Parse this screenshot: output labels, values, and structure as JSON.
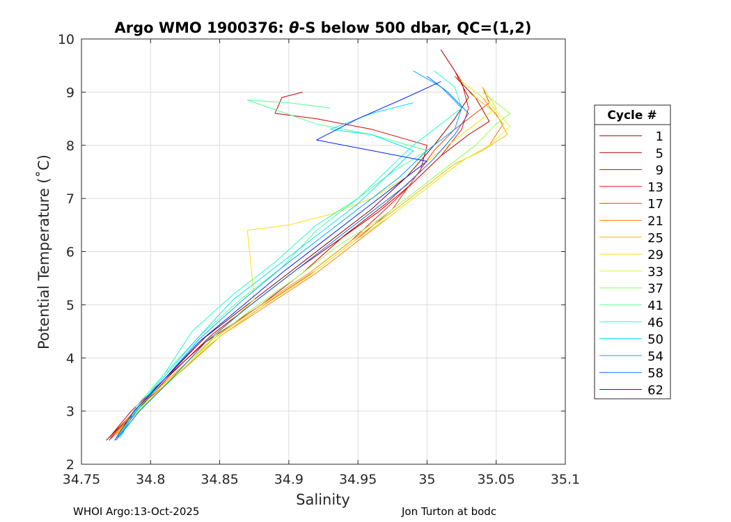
{
  "footer": {
    "left": "WHOI Argo:13-Oct-2025",
    "right": "Jon Turton at bodc"
  },
  "chart_data": {
    "type": "line",
    "title_prefix": "Argo WMO 1900376: ",
    "title_symbol": "θ",
    "title_suffix": "-S below 500 dbar,  QC=(1,2)",
    "xlabel": "Salinity",
    "ylabel": "Potential Temperature (˚C)",
    "xlim": [
      34.75,
      35.1
    ],
    "ylim": [
      2,
      10
    ],
    "xticks": [
      "34.75",
      "34.8",
      "34.85",
      "34.9",
      "34.95",
      "35",
      "35.05",
      "35.1"
    ],
    "yticks": [
      "2",
      "3",
      "4",
      "5",
      "6",
      "7",
      "8",
      "9",
      "10"
    ],
    "grid": true,
    "legend": {
      "title": "Cycle #",
      "placement": "outside-right",
      "entries": [
        {
          "label": "1",
          "color": "#800000"
        },
        {
          "label": "5",
          "color": "#a80000"
        },
        {
          "label": "9",
          "color": "#d00000"
        },
        {
          "label": "13",
          "color": "#f01010"
        },
        {
          "label": "17",
          "color": "#ff3a00"
        },
        {
          "label": "21",
          "color": "#ff8000"
        },
        {
          "label": "25",
          "color": "#ffb000"
        },
        {
          "label": "29",
          "color": "#ffe000"
        },
        {
          "label": "33",
          "color": "#d8ff28"
        },
        {
          "label": "37",
          "color": "#90ff50"
        },
        {
          "label": "41",
          "color": "#50ff90"
        },
        {
          "label": "46",
          "color": "#20ffd0"
        },
        {
          "label": "50",
          "color": "#00e0ff"
        },
        {
          "label": "54",
          "color": "#00a8ff"
        },
        {
          "label": "58",
          "color": "#0070ff"
        },
        {
          "label": "62",
          "color": "#0020ff"
        }
      ]
    },
    "series": [
      {
        "cycle": "1",
        "color": "#800000",
        "x": [
          34.768,
          34.785,
          34.81,
          34.84,
          34.87,
          34.9,
          34.93,
          34.96,
          34.985,
          35.005,
          35.02,
          35.03,
          35.02,
          35.01
        ],
        "y": [
          2.45,
          2.9,
          3.6,
          4.4,
          5.0,
          5.6,
          6.2,
          6.8,
          7.4,
          8.0,
          8.5,
          8.9,
          9.4,
          9.8
        ]
      },
      {
        "cycle": "5",
        "color": "#a80000",
        "x": [
          34.77,
          34.79,
          34.815,
          34.845,
          34.875,
          34.905,
          34.935,
          34.965,
          34.99,
          35.01,
          35.03,
          35.045,
          35.035,
          35.02
        ],
        "y": [
          2.45,
          3.0,
          3.7,
          4.45,
          5.05,
          5.65,
          6.2,
          6.75,
          7.3,
          7.8,
          8.2,
          8.45,
          8.9,
          9.3
        ]
      },
      {
        "cycle": "9",
        "color": "#d00000",
        "x": [
          34.77,
          34.786,
          34.81,
          34.84,
          34.88,
          34.91,
          34.94,
          34.97,
          34.995,
          35.0,
          34.96,
          34.92,
          34.89,
          34.895,
          34.91
        ],
        "y": [
          2.5,
          3.0,
          3.6,
          4.3,
          5.0,
          5.6,
          6.3,
          6.9,
          7.5,
          8.0,
          8.3,
          8.5,
          8.6,
          8.9,
          9.0
        ]
      },
      {
        "cycle": "13",
        "color": "#f01010",
        "x": [
          34.772,
          34.79,
          34.815,
          34.845,
          34.88,
          34.915,
          34.945,
          34.97,
          34.99,
          35.01,
          35.025,
          35.03,
          35.025,
          35.015
        ],
        "y": [
          2.5,
          3.05,
          3.65,
          4.35,
          5.0,
          5.6,
          6.2,
          6.8,
          7.3,
          7.8,
          8.3,
          8.7,
          9.2,
          9.6
        ]
      },
      {
        "cycle": "17",
        "color": "#ff3a00",
        "x": [
          34.771,
          34.79,
          34.82,
          34.85,
          34.885,
          34.92,
          34.95,
          34.975,
          34.99,
          35.005,
          35.02,
          35.035,
          35.045,
          35.04
        ],
        "y": [
          2.5,
          3.05,
          3.7,
          4.4,
          5.05,
          5.65,
          6.25,
          6.8,
          7.35,
          7.9,
          8.3,
          8.6,
          8.8,
          9.1
        ]
      },
      {
        "cycle": "21",
        "color": "#ff8000",
        "x": [
          34.775,
          34.795,
          34.82,
          34.85,
          34.885,
          34.92,
          34.95,
          34.98,
          35.005,
          35.025,
          35.045,
          35.055,
          35.04,
          35.02
        ],
        "y": [
          2.55,
          3.1,
          3.7,
          4.4,
          5.0,
          5.6,
          6.2,
          6.8,
          7.3,
          7.7,
          8.0,
          8.4,
          8.9,
          9.3
        ]
      },
      {
        "cycle": "25",
        "color": "#ffb000",
        "x": [
          34.774,
          34.79,
          34.815,
          34.845,
          34.88,
          34.915,
          34.945,
          34.975,
          35.0,
          35.02,
          35.04,
          35.058,
          35.05,
          35.03
        ],
        "y": [
          2.55,
          3.05,
          3.65,
          4.35,
          5.0,
          5.6,
          6.2,
          6.75,
          7.25,
          7.65,
          7.9,
          8.2,
          8.6,
          9.0
        ]
      },
      {
        "cycle": "29",
        "color": "#ffe000",
        "x": [
          34.776,
          34.795,
          34.82,
          34.85,
          34.875,
          34.87,
          34.9,
          34.93,
          34.96,
          34.985,
          35.01,
          35.03,
          35.05,
          35.04
        ],
        "y": [
          2.6,
          3.1,
          3.75,
          4.5,
          5.1,
          6.4,
          6.5,
          6.7,
          7.0,
          7.4,
          7.9,
          8.3,
          8.7,
          9.1
        ]
      },
      {
        "cycle": "33",
        "color": "#d8ff28",
        "x": [
          34.776,
          34.79,
          34.815,
          34.845,
          34.88,
          34.915,
          34.945,
          34.975,
          35.0,
          35.025,
          35.045,
          35.06,
          35.045,
          35.025
        ],
        "y": [
          2.55,
          3.0,
          3.6,
          4.3,
          4.95,
          5.55,
          6.15,
          6.7,
          7.2,
          7.7,
          8.0,
          8.35,
          8.8,
          9.2
        ]
      },
      {
        "cycle": "37",
        "color": "#90ff50",
        "x": [
          34.778,
          34.795,
          34.82,
          34.845,
          34.875,
          34.905,
          34.935,
          34.965,
          34.99,
          35.015,
          35.035,
          35.05,
          35.06,
          35.04
        ],
        "y": [
          2.55,
          3.1,
          3.7,
          4.35,
          4.95,
          5.5,
          6.1,
          6.6,
          7.1,
          7.6,
          8.0,
          8.4,
          8.6,
          9.0
        ]
      },
      {
        "cycle": "41",
        "color": "#50ff90",
        "x": [
          34.778,
          34.79,
          34.81,
          34.835,
          34.865,
          34.895,
          34.92,
          34.95,
          34.975,
          35.0,
          34.96,
          34.92,
          34.87,
          34.9,
          34.93
        ],
        "y": [
          2.55,
          3.1,
          3.7,
          4.4,
          5.1,
          5.7,
          6.4,
          7.0,
          7.5,
          7.9,
          8.2,
          8.4,
          8.85,
          8.8,
          8.7
        ]
      },
      {
        "cycle": "46",
        "color": "#20ffd0",
        "x": [
          34.778,
          34.792,
          34.81,
          34.83,
          34.86,
          34.89,
          34.92,
          34.95,
          34.97,
          34.99,
          35.01,
          35.025,
          35.02,
          35.005
        ],
        "y": [
          2.55,
          3.1,
          3.7,
          4.5,
          5.2,
          5.8,
          6.5,
          7.0,
          7.5,
          8.0,
          8.4,
          8.7,
          9.1,
          9.4
        ]
      },
      {
        "cycle": "50",
        "color": "#00e0ff",
        "x": [
          34.778,
          34.79,
          34.81,
          34.835,
          34.86,
          34.89,
          34.92,
          34.95,
          34.97,
          34.99,
          34.96,
          34.93,
          34.96,
          34.99
        ],
        "y": [
          2.5,
          3.05,
          3.65,
          4.4,
          5.1,
          5.7,
          6.3,
          6.9,
          7.4,
          7.9,
          8.2,
          8.3,
          8.6,
          8.8
        ]
      },
      {
        "cycle": "54",
        "color": "#00a8ff",
        "x": [
          34.776,
          34.79,
          34.81,
          34.835,
          34.865,
          34.895,
          34.925,
          34.955,
          34.98,
          35.0,
          35.02,
          35.025,
          35.01,
          34.99
        ],
        "y": [
          2.5,
          3.0,
          3.6,
          4.35,
          5.05,
          5.7,
          6.3,
          6.9,
          7.4,
          7.9,
          8.3,
          8.7,
          9.1,
          9.4
        ]
      },
      {
        "cycle": "58",
        "color": "#0070ff",
        "x": [
          34.775,
          34.792,
          34.815,
          34.84,
          34.87,
          34.9,
          34.93,
          34.96,
          34.985,
          35.005,
          35.02,
          35.03,
          35.015,
          35.0
        ],
        "y": [
          2.45,
          3.0,
          3.6,
          4.3,
          4.95,
          5.55,
          6.15,
          6.75,
          7.25,
          7.75,
          8.2,
          8.6,
          9.0,
          9.3
        ]
      },
      {
        "cycle": "62",
        "color": "#0020ff",
        "x": [
          34.774,
          34.788,
          34.81,
          34.835,
          34.865,
          34.895,
          34.925,
          34.955,
          34.98,
          35.0,
          34.96,
          34.92,
          34.95,
          34.985,
          35.01
        ],
        "y": [
          2.45,
          3.0,
          3.6,
          4.3,
          4.95,
          5.6,
          6.2,
          6.8,
          7.3,
          7.7,
          7.9,
          8.1,
          8.5,
          8.9,
          9.2
        ]
      }
    ]
  }
}
